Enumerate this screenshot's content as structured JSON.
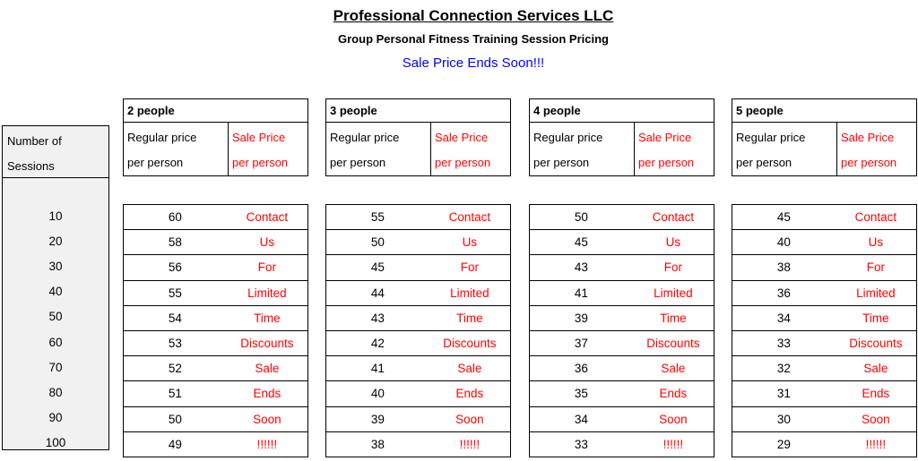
{
  "header": {
    "title": "Professional Connection Services LLC",
    "subtitle": "Group Personal Fitness Training Session Pricing",
    "banner": "Sale Price Ends Soon!!!"
  },
  "colors": {
    "sale_text": "#ff0000",
    "banner_text": "#0000ff",
    "sessions_fill": "#f1f1f1",
    "border": "#000000"
  },
  "sessions_column": {
    "header_line1": "Number of",
    "header_line2": "Sessions",
    "values": [
      "10",
      "20",
      "30",
      "40",
      "50",
      "60",
      "70",
      "80",
      "90",
      "100"
    ]
  },
  "column_headers": {
    "regular_line1": "Regular price",
    "regular_line2": "per person",
    "sale_line1": "Sale Price",
    "sale_line2": "per person"
  },
  "sale_words": [
    "Contact",
    "Us",
    "For",
    "Limited",
    "Time",
    "Discounts",
    "Sale",
    "Ends",
    "Soon",
    "!!!!!!"
  ],
  "tables": [
    {
      "group": "2 people",
      "regular": [
        "60",
        "58",
        "56",
        "55",
        "54",
        "53",
        "52",
        "51",
        "50",
        "49"
      ]
    },
    {
      "group": "3 people",
      "regular": [
        "55",
        "50",
        "45",
        "44",
        "43",
        "42",
        "41",
        "40",
        "39",
        "38"
      ]
    },
    {
      "group": "4 people",
      "regular": [
        "50",
        "45",
        "43",
        "41",
        "39",
        "37",
        "36",
        "35",
        "34",
        "33"
      ]
    },
    {
      "group": "5 people",
      "regular": [
        "45",
        "40",
        "38",
        "36",
        "34",
        "33",
        "32",
        "31",
        "30",
        "29"
      ]
    }
  ]
}
